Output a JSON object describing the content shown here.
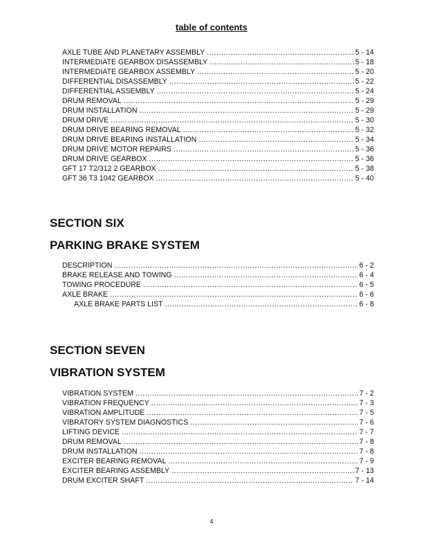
{
  "title": "table of contents",
  "section5_entries": [
    {
      "label": "AXLE TUBE AND PLANETARY ASSEMBLY",
      "page": "5 - 14"
    },
    {
      "label": "INTERMEDIATE GEARBOX DISASSEMBLY",
      "page": "5 - 18"
    },
    {
      "label": "INTERMEDIATE GEARBOX ASSEMBLY",
      "page": "5 - 20"
    },
    {
      "label": "DIFFERENTIAL DISASSEMBLY",
      "page": "5 - 22"
    },
    {
      "label": "DIFFERENTIAL ASSEMBLY",
      "page": "5 - 24"
    },
    {
      "label": "DRUM REMOVAL",
      "page": "5 - 29"
    },
    {
      "label": "DRUM INSTALLATION",
      "page": "5 - 29"
    },
    {
      "label": "DRUM DRIVE",
      "page": "5 - 30"
    },
    {
      "label": "DRUM DRIVE BEARING REMOVAL",
      "page": "5 - 32"
    },
    {
      "label": "DRUM DRIVE BEARING INSTALLATION",
      "page": "5 - 34"
    },
    {
      "label": "DRUM DRIVE MOTOR REPAIRS",
      "page": "5 - 36"
    },
    {
      "label": "DRUM DRIVE GEARBOX",
      "page": "5 - 36"
    },
    {
      "label": "GFT 17 T2/312 2 GEARBOX",
      "page": "5 - 38"
    },
    {
      "label": "GFT 36 T3 1042 GEARBOX",
      "page": "5 - 40"
    }
  ],
  "section6": {
    "heading": "SECTION SIX",
    "title": "PARKING BRAKE SYSTEM",
    "entries": [
      {
        "label": "DESCRIPTION",
        "page": "6 - 2"
      },
      {
        "label": "BRAKE RELEASE AND TOWING",
        "page": "6 - 4"
      },
      {
        "label": "TOWING PROCEDURE",
        "page": "6 - 5"
      },
      {
        "label": "AXLE BRAKE",
        "page": "6 - 6"
      },
      {
        "label": "AXLE BRAKE PARTS LIST",
        "page": "6 - 8",
        "sub": true
      }
    ]
  },
  "section7": {
    "heading": "SECTION SEVEN",
    "title": "VIBRATION SYSTEM",
    "entries": [
      {
        "label": "VIBRATION SYSTEM",
        "page": "7 - 2"
      },
      {
        "label": "VIBRATION FREQUENCY",
        "page": "7 - 3"
      },
      {
        "label": "VIBRATION AMPLITUDE",
        "page": "7 - 5"
      },
      {
        "label": "VIBRATORY SYSTEM DIAGNOSTICS",
        "page": "7 - 6"
      },
      {
        "label": "LIFTING DEVICE",
        "page": "7 - 7"
      },
      {
        "label": "DRUM REMOVAL",
        "page": "7 - 8"
      },
      {
        "label": "DRUM INSTALLATION",
        "page": "7 - 8"
      },
      {
        "label": "EXCITER BEARING REMOVAL",
        "page": "7 - 9"
      },
      {
        "label": "EXCITER BEARING ASSEMBLY",
        "page": "7 - 13"
      },
      {
        "label": "DRUM EXCITER SHAFT",
        "page": "7 - 14"
      }
    ]
  },
  "page_number": "4"
}
